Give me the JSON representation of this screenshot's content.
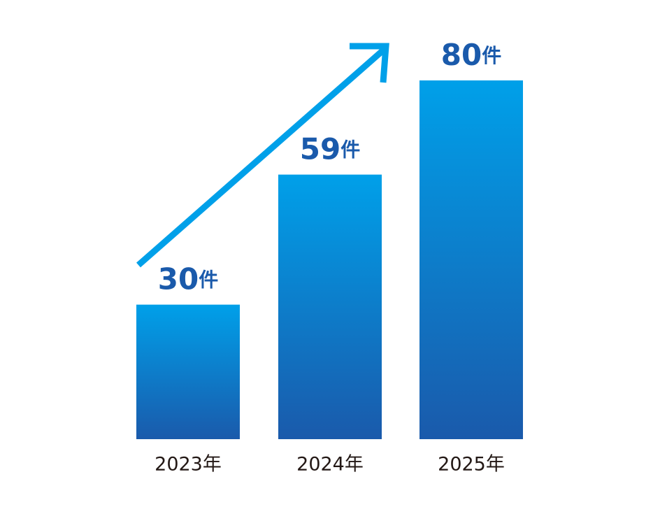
{
  "chart_data": {
    "type": "bar",
    "categories": [
      "2023年",
      "2024年",
      "2025年"
    ],
    "values": [
      30,
      59,
      80
    ],
    "value_labels": [
      "30件",
      "59件",
      "80件"
    ],
    "gradient": [
      "#00a0e9",
      "#1a5aab"
    ]
  }
}
